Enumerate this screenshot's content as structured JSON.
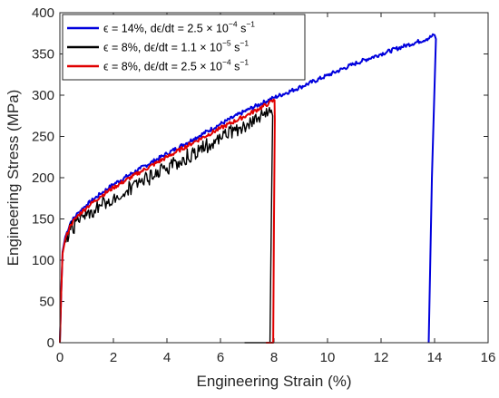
{
  "chart_data": {
    "type": "line",
    "title": "",
    "xlabel": "Engineering Strain (%)",
    "ylabel": "Engineering Stress (MPa)",
    "xlim": [
      0,
      16
    ],
    "ylim": [
      0,
      400
    ],
    "x_ticks": [
      0,
      2,
      4,
      6,
      8,
      10,
      12,
      14,
      16
    ],
    "y_ticks": [
      0,
      50,
      100,
      150,
      200,
      250,
      300,
      350,
      400
    ],
    "grid": false,
    "legend_position": "top-left",
    "series": [
      {
        "legend": {
          "pre": "ϵ = 14%, dϵ/dt = 2.5 × 10",
          "exp": "−4",
          "post": " s",
          "post_exp": "−1"
        },
        "color": "#0000dd",
        "noise": 2.5,
        "points": [
          [
            0,
            0
          ],
          [
            0.05,
            60
          ],
          [
            0.1,
            110
          ],
          [
            0.2,
            128
          ],
          [
            0.4,
            146
          ],
          [
            0.7,
            158
          ],
          [
            1,
            167
          ],
          [
            1.5,
            180
          ],
          [
            2,
            192
          ],
          [
            3,
            211
          ],
          [
            4,
            229
          ],
          [
            5,
            247
          ],
          [
            6,
            265
          ],
          [
            7,
            282
          ],
          [
            8,
            297
          ],
          [
            9,
            310
          ],
          [
            10,
            324
          ],
          [
            11,
            338
          ],
          [
            12,
            350
          ],
          [
            13,
            361
          ],
          [
            13.7,
            368
          ],
          [
            14,
            373
          ],
          [
            14.05,
            368
          ],
          [
            13.9,
            200
          ],
          [
            13.78,
            0
          ]
        ]
      },
      {
        "legend": {
          "pre": "ϵ = 8%, dϵ/dt = 1.1 × 10",
          "exp": "−5",
          "post": " s",
          "post_exp": "−1"
        },
        "color": "#000000",
        "noise": 9,
        "points": [
          [
            6.9,
            0
          ],
          [
            7.85,
            0
          ],
          [
            7.88,
            90
          ],
          [
            7.92,
            200
          ],
          [
            7.95,
            275
          ],
          [
            7.9,
            282
          ],
          [
            7.5,
            275
          ],
          [
            7,
            266
          ],
          [
            6.5,
            257
          ],
          [
            6,
            248
          ],
          [
            5,
            230
          ],
          [
            4,
            212
          ],
          [
            3,
            194
          ],
          [
            2,
            176
          ],
          [
            1.5,
            166
          ],
          [
            1,
            154
          ],
          [
            0.7,
            147
          ],
          [
            0.4,
            137
          ],
          [
            0.2,
            124
          ],
          [
            0.1,
            110
          ],
          [
            0.05,
            60
          ],
          [
            0,
            0
          ]
        ]
      },
      {
        "legend": {
          "pre": "ϵ = 8%, dϵ/dt = 2.5 × 10",
          "exp": "−4",
          "post": " s",
          "post_exp": "−1"
        },
        "color": "#e00000",
        "noise": 2.5,
        "points": [
          [
            0,
            0
          ],
          [
            0.05,
            60
          ],
          [
            0.1,
            108
          ],
          [
            0.2,
            125
          ],
          [
            0.4,
            143
          ],
          [
            0.7,
            155
          ],
          [
            1,
            164
          ],
          [
            1.5,
            177
          ],
          [
            2,
            188
          ],
          [
            3,
            207
          ],
          [
            4,
            225
          ],
          [
            5,
            243
          ],
          [
            6,
            260
          ],
          [
            7,
            276
          ],
          [
            7.8,
            290
          ],
          [
            8.02,
            294
          ],
          [
            8.03,
            270
          ],
          [
            8,
            150
          ],
          [
            7.97,
            0
          ],
          [
            7.7,
            0
          ]
        ]
      }
    ]
  }
}
